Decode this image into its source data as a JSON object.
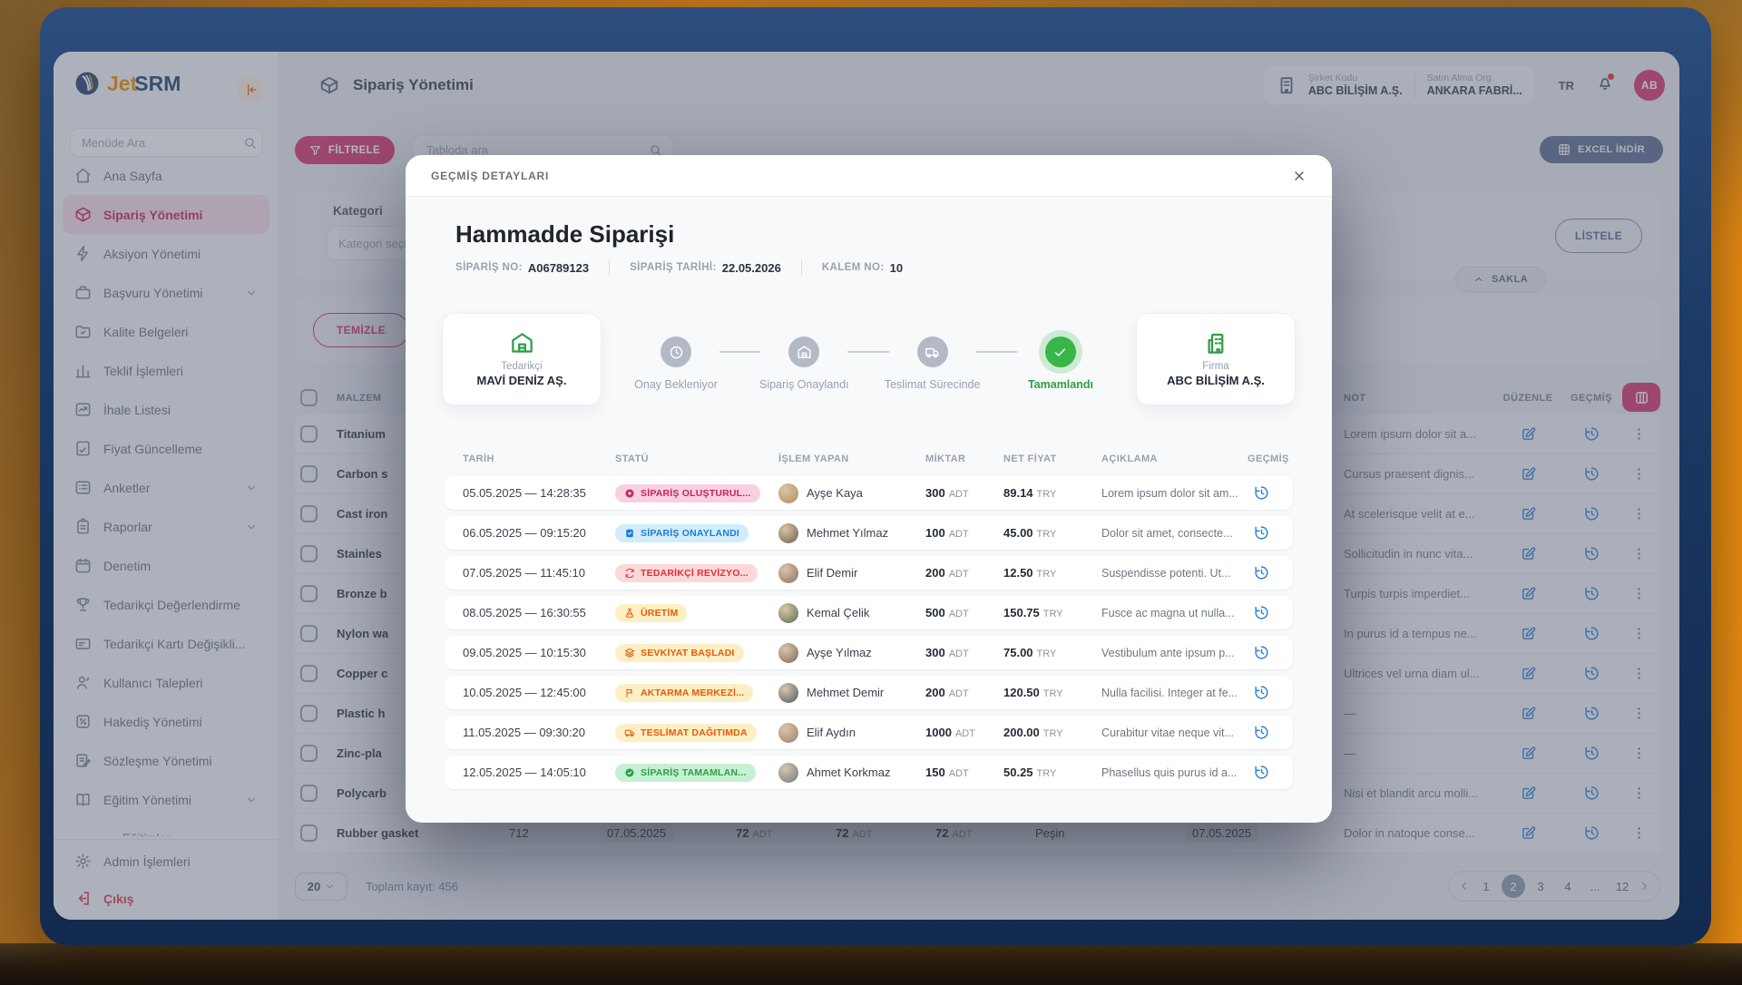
{
  "sidebar": {
    "logo_jet": "Jet",
    "logo_srm": "SRM",
    "search_placeholder": "Menüde Ara",
    "items": [
      {
        "label": "Ana Sayfa",
        "icon": "home"
      },
      {
        "label": "Sipariş Yönetimi",
        "icon": "box",
        "active": true
      },
      {
        "label": "Aksiyon Yönetimi",
        "icon": "bolt"
      },
      {
        "label": "Başvuru Yönetimi",
        "icon": "briefcase",
        "chevron": true
      },
      {
        "label": "Kalite Belgeleri",
        "icon": "folder"
      },
      {
        "label": "Teklif İşlemleri",
        "icon": "bars"
      },
      {
        "label": "İhale Listesi",
        "icon": "trend"
      },
      {
        "label": "Fiyat Güncelleme",
        "icon": "doc"
      },
      {
        "label": "Anketler",
        "icon": "checklist",
        "chevron": true
      },
      {
        "label": "Raporlar",
        "icon": "clipboard",
        "chevron": true
      },
      {
        "label": "Denetim",
        "icon": "calendar"
      },
      {
        "label": "Tedarikçi Değerlendirme",
        "icon": "trophy"
      },
      {
        "label": "Tedarikçi Kartı Değişikli...",
        "icon": "card"
      },
      {
        "label": "Kullanıcı Talepleri",
        "icon": "user"
      },
      {
        "label": "Hakediş Yönetimi",
        "icon": "percent"
      },
      {
        "label": "Sözleşme Yönetimi",
        "icon": "contract"
      },
      {
        "label": "Eğitim Yönetimi",
        "icon": "book",
        "chevron": true
      },
      {
        "label": "Eğitimler",
        "icon": "dot",
        "sub": true
      }
    ],
    "footer_items": [
      {
        "label": "Admin İşlemleri",
        "icon": "gear"
      },
      {
        "label": "Çıkış",
        "icon": "logout",
        "danger": true
      }
    ]
  },
  "header": {
    "page_title": "Sipariş Yönetimi",
    "company_code_label": "Şirket Kodu",
    "company_code_value": "ABC BİLİŞİM A.Ş.",
    "purchase_org_label": "Satın Alma Org.",
    "purchase_org_value": "ANKARA FABRİ...",
    "language": "TR",
    "avatar": "AB"
  },
  "toolbar": {
    "filter_button": "FİLTRELE",
    "search_placeholder": "Tabloda ara",
    "excel_button": "EXCEL İNDİR"
  },
  "filters": {
    "category_label": "Kategori",
    "category_placeholder": "Kategori seçin",
    "list_button": "LİSTELE",
    "clear_button": "TEMİZLE",
    "collapse_button": "SAKLA"
  },
  "bg_table": {
    "headers": {
      "material": "MALZEM",
      "note": "NOT",
      "edit": "DÜZENLE",
      "history": "GEÇMİŞ"
    },
    "rows": [
      {
        "name": "Titanium",
        "code": "",
        "date1": "",
        "q1": "",
        "q2": "",
        "q3": "",
        "unit": "",
        "pay": "",
        "date2": "",
        "note": "Lorem ipsum dolor sit a..."
      },
      {
        "name": "Carbon s",
        "code": "",
        "date1": "",
        "q1": "",
        "q2": "",
        "q3": "",
        "unit": "",
        "pay": "",
        "date2": "",
        "note": "Cursus praesent dignis..."
      },
      {
        "name": "Cast iron",
        "code": "",
        "date1": "",
        "q1": "",
        "q2": "",
        "q3": "",
        "unit": "",
        "pay": "",
        "date2": "",
        "note": "At scelerisque velit at e..."
      },
      {
        "name": "Stainles",
        "code": "",
        "date1": "",
        "q1": "",
        "q2": "",
        "q3": "",
        "unit": "",
        "pay": "",
        "date2": "",
        "note": "Sollicitudin in nunc vita..."
      },
      {
        "name": "Bronze b",
        "code": "",
        "date1": "",
        "q1": "",
        "q2": "",
        "q3": "",
        "unit": "",
        "pay": "",
        "date2": "",
        "note": "Turpis turpis imperdiet..."
      },
      {
        "name": "Nylon wa",
        "code": "",
        "date1": "",
        "q1": "",
        "q2": "",
        "q3": "",
        "unit": "",
        "pay": "",
        "date2": "",
        "note": "In purus id a tempus ne..."
      },
      {
        "name": "Copper c",
        "code": "",
        "date1": "",
        "q1": "",
        "q2": "",
        "q3": "",
        "unit": "",
        "pay": "",
        "date2": "",
        "note": "Ultrices vel urna diam ul..."
      },
      {
        "name": "Plastic h",
        "code": "",
        "date1": "",
        "q1": "",
        "q2": "",
        "q3": "",
        "unit": "",
        "pay": "",
        "date2": "",
        "note": "—"
      },
      {
        "name": "Zinc-pla",
        "code": "",
        "date1": "",
        "q1": "",
        "q2": "",
        "q3": "",
        "unit": "",
        "pay": "",
        "date2": "",
        "note": "—"
      },
      {
        "name": "Polycarb",
        "code": "",
        "date1": "",
        "q1": "",
        "q2": "",
        "q3": "",
        "unit": "",
        "pay": "",
        "date2": "",
        "note": "Nisi et blandit arcu molli..."
      },
      {
        "name": "Rubber gasket",
        "code": "712",
        "date1": "07.05.2025",
        "q1": "72",
        "q2": "72",
        "q3": "72",
        "unit": "ADT",
        "pay": "Peşin",
        "date2": "07.05.2025",
        "note": "Dolor in natoque conse..."
      }
    ],
    "footer": {
      "page_size": "20",
      "total": "Toplam kayıt: 456",
      "pages": [
        "1",
        "2",
        "3",
        "4",
        "...",
        "12"
      ],
      "active": "2"
    }
  },
  "modal": {
    "header_title": "GEÇMİŞ DETAYLARI",
    "title": "Hammadde Siparişi",
    "meta": [
      {
        "label": "SİPARİŞ NO:",
        "value": "A06789123"
      },
      {
        "label": "SİPARİŞ TARİHİ:",
        "value": "22.05.2026"
      },
      {
        "label": "KALEM NO:",
        "value": "10"
      }
    ],
    "supplier": {
      "label": "Tedarikçi",
      "name": "MAVİ DENİZ AŞ.",
      "icon": "warehouse"
    },
    "firm": {
      "label": "Firma",
      "name": "ABC BİLİŞİM A.Ş.",
      "icon": "building2"
    },
    "steps": [
      {
        "label": "Onay Bekleniyor",
        "icon": "clock"
      },
      {
        "label": "Sipariş Onaylandı",
        "icon": "warehouse"
      },
      {
        "label": "Teslimat Sürecinde",
        "icon": "truck"
      },
      {
        "label": "Tamamlandı",
        "icon": "check",
        "active": true
      }
    ],
    "columns": [
      "TARİH",
      "STATÜ",
      "İŞLEM YAPAN",
      "MİKTAR",
      "NET FİYAT",
      "AÇIKLAMA",
      "GEÇMİŞ"
    ],
    "unit": "ADT",
    "currency": "TRY",
    "rows": [
      {
        "date": "05.05.2025 — 14:28:35",
        "status": "SİPARİŞ OLUŞTURUL...",
        "type": "pink",
        "status_icon": "circleplus",
        "user": "Ayşe Kaya",
        "qty": "300",
        "price": "89.14",
        "desc": "Lorem ipsum dolor sit am..."
      },
      {
        "date": "06.05.2025 — 09:15:20",
        "status": "SİPARİŞ ONAYLANDI",
        "type": "blue",
        "status_icon": "doccheck",
        "user": "Mehmet Yılmaz",
        "qty": "100",
        "price": "45.00",
        "desc": "Dolor sit amet, consecte..."
      },
      {
        "date": "07.05.2025 — 11:45:10",
        "status": "TEDARİKÇİ REVİZYO...",
        "type": "red",
        "status_icon": "refresh",
        "user": "Elif Demir",
        "qty": "200",
        "price": "12.50",
        "desc": "Suspendisse potenti. Ut..."
      },
      {
        "date": "08.05.2025 — 16:30:55",
        "status": "ÜRETİM",
        "type": "yellow",
        "status_icon": "flask",
        "user": "Kemal Çelik",
        "qty": "500",
        "price": "150.75",
        "desc": "Fusce ac magna ut nulla..."
      },
      {
        "date": "09.05.2025 — 10:15:30",
        "status": "SEVKİYAT BAŞLADI",
        "type": "yellow",
        "status_icon": "layers",
        "user": "Ayşe Yılmaz",
        "qty": "300",
        "price": "75.00",
        "desc": "Vestibulum ante ipsum p..."
      },
      {
        "date": "10.05.2025 — 12:45:00",
        "status": "AKTARMA MERKEZİ...",
        "type": "yellow",
        "status_icon": "flag",
        "user": "Mehmet Demir",
        "qty": "200",
        "price": "120.50",
        "desc": "Nulla facilisi. Integer at fe..."
      },
      {
        "date": "11.05.2025 — 09:30:20",
        "status": "TESLİMAT DAĞITIMDA",
        "type": "yellow",
        "status_icon": "truck",
        "user": "Elif Aydın",
        "qty": "1000",
        "price": "200.00",
        "desc": "Curabitur vitae neque vit..."
      },
      {
        "date": "12.05.2025 — 14:05:10",
        "status": "SİPARİŞ TAMAMLAN...",
        "type": "green",
        "status_icon": "checkcircle",
        "user": "Ahmet Korkmaz",
        "qty": "150",
        "price": "50.25",
        "desc": "Phasellus quis purus id a..."
      }
    ]
  },
  "colors": {
    "accent_pink": "#d6336c",
    "success_green": "#2f9e44",
    "link_blue": "#1c7ed6",
    "warn_orange": "#e8590c",
    "danger_red": "#e03131",
    "slate_button": "#5a6b8e"
  }
}
